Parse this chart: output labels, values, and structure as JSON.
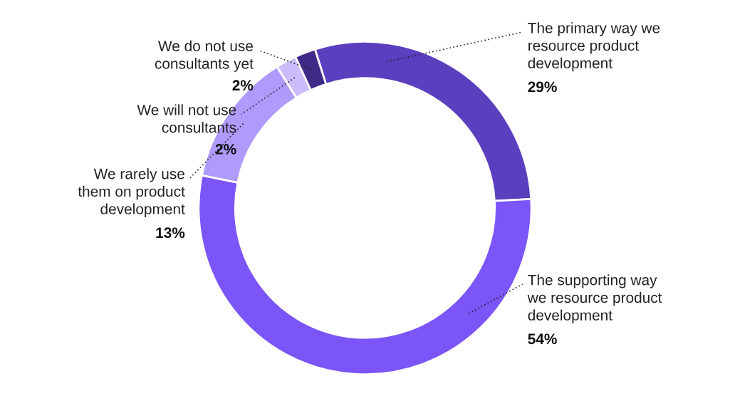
{
  "chart_data": {
    "type": "donut",
    "categories": [
      "The primary way we\nresource product\ndevelopment",
      "The supporting way\nwe resource product\ndevelopment",
      "We rarely use\nthem on product\ndevelopment",
      "We will not use\nconsultants",
      "We do not use\nconsultants yet"
    ],
    "values": [
      29,
      54,
      13,
      2,
      2
    ],
    "value_labels": [
      "29%",
      "54%",
      "13%",
      "2%",
      "2%"
    ],
    "colors": [
      "#5a3fbf",
      "#7b55f7",
      "#ae9bfb",
      "#cbbdfb",
      "#3f2a87"
    ],
    "legend": false
  }
}
